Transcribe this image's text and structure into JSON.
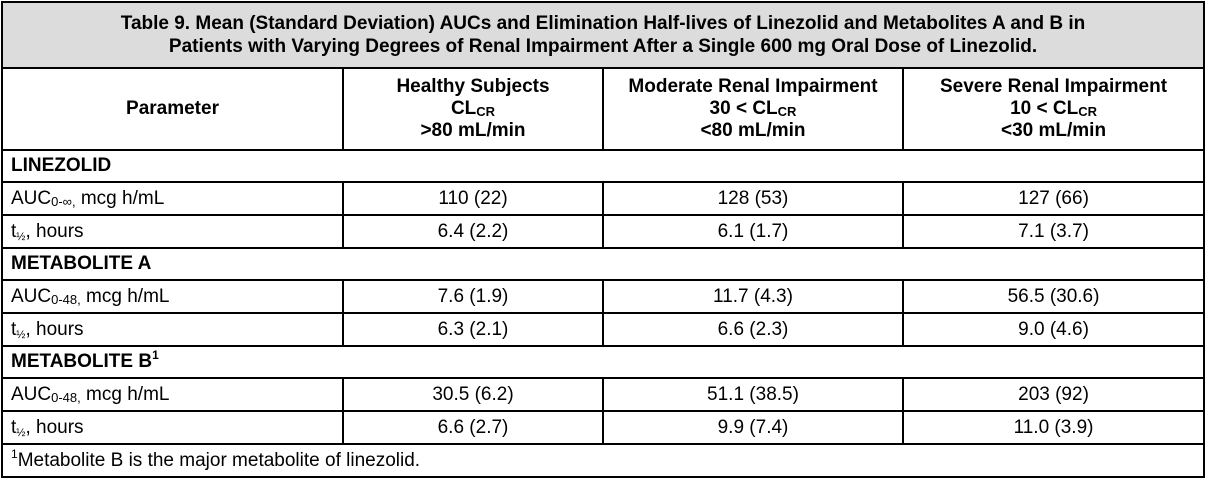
{
  "caption": {
    "line1": "Table 9. Mean (Standard Deviation) AUCs and Elimination Half-lives of Linezolid and Metabolites A and B in",
    "line2": "Patients with Varying Degrees of Renal Impairment After a Single 600 mg Oral Dose of Linezolid."
  },
  "header": {
    "parameter": "Parameter",
    "col1": {
      "line1": "Healthy Subjects",
      "cl": "CL",
      "cl_sub": "CR",
      "line3": ">80 mL/min"
    },
    "col2": {
      "line1": "Moderate Renal Impairment",
      "pre": "30 < CL",
      "cl_sub": "CR",
      "line3": "<80 mL/min"
    },
    "col3": {
      "line1": "Severe Renal Impairment",
      "pre": "10 < CL",
      "cl_sub": "CR",
      "line3": "<30 mL/min"
    }
  },
  "sections": [
    {
      "title": "LINEZOLID",
      "title_sup": "",
      "rows": [
        {
          "label": "AUC",
          "label_sub": "0-∞,",
          "label_rest": " mcg h/mL",
          "values": [
            "110 (22)",
            "128 (53)",
            "127 (66)"
          ]
        },
        {
          "label": "t",
          "label_sub": "½",
          "label_rest": ", hours",
          "values": [
            "6.4 (2.2)",
            "6.1 (1.7)",
            "7.1 (3.7)"
          ]
        }
      ]
    },
    {
      "title": "METABOLITE A",
      "title_sup": "",
      "rows": [
        {
          "label": "AUC",
          "label_sub": "0-48,",
          "label_rest": " mcg h/mL",
          "values": [
            "7.6 (1.9)",
            "11.7 (4.3)",
            "56.5 (30.6)"
          ]
        },
        {
          "label": "t",
          "label_sub": "½",
          "label_rest": ", hours",
          "values": [
            "6.3 (2.1)",
            "6.6 (2.3)",
            "9.0 (4.6)"
          ]
        }
      ]
    },
    {
      "title": "METABOLITE B",
      "title_sup": "1",
      "rows": [
        {
          "label": "AUC",
          "label_sub": "0-48,",
          "label_rest": " mcg h/mL",
          "values": [
            "30.5 (6.2)",
            "51.1 (38.5)",
            "203 (92)"
          ]
        },
        {
          "label": "t",
          "label_sub": "½",
          "label_rest": ", hours",
          "values": [
            "6.6 (2.7)",
            "9.9 (7.4)",
            "11.0 (3.9)"
          ]
        }
      ]
    }
  ],
  "footnote": {
    "mark": "1",
    "text": "Metabolite B is the major metabolite of linezolid."
  }
}
